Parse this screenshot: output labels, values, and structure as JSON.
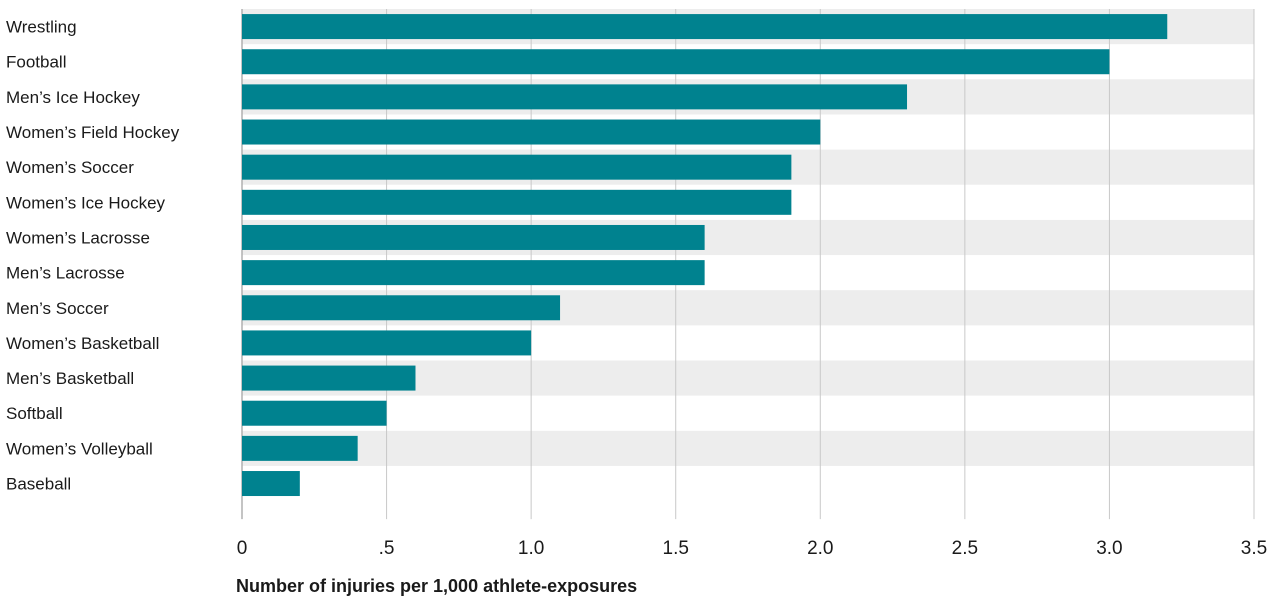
{
  "chart_data": {
    "type": "bar",
    "orientation": "horizontal",
    "title": "",
    "xlabel": "Number of injuries per 1,000 athlete-exposures",
    "ylabel": "",
    "categories": [
      "Wrestling",
      "Football",
      "Men’s Ice Hockey",
      "Women’s Field Hockey",
      "Women’s Soccer",
      "Women’s Ice Hockey",
      "Women’s Lacrosse",
      "Men’s Lacrosse",
      "Men’s Soccer",
      "Women’s Basketball",
      "Men’s Basketball",
      "Softball",
      "Women’s Volleyball",
      "Baseball"
    ],
    "values": [
      3.2,
      3.0,
      2.3,
      2.0,
      1.9,
      1.9,
      1.6,
      1.6,
      1.1,
      1.0,
      0.6,
      0.5,
      0.4,
      0.2
    ],
    "xlim": [
      0,
      3.5
    ],
    "xticks": [
      0,
      0.5,
      1.0,
      1.5,
      2.0,
      2.5,
      3.0,
      3.5
    ],
    "xtick_labels": [
      "0",
      ".5",
      "1.0",
      "1.5",
      "2.0",
      "2.5",
      "3.0",
      "3.5"
    ],
    "grid": true,
    "legend": "none",
    "colors": {
      "bar": "#00828F",
      "band": "#EDEDED",
      "grid": "#C8C8C8",
      "axis": "#B0B0B0"
    }
  }
}
